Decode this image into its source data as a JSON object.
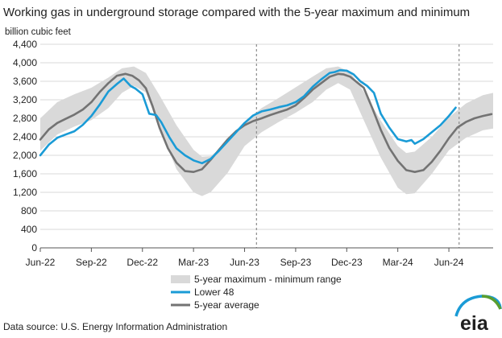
{
  "chart_data": {
    "type": "line",
    "title": "Working gas in underground  storage compared with the 5-year maximum and minimum",
    "ylabel": "billion cubic feet",
    "xlabel": "",
    "ylim": [
      0,
      4400
    ],
    "y_ticks": [
      0,
      400,
      800,
      1200,
      1600,
      2000,
      2400,
      2800,
      3200,
      3600,
      4000,
      4400
    ],
    "y_tick_labels": [
      "0",
      "400",
      "800",
      "1,200",
      "1,600",
      "2,000",
      "2,400",
      "2,800",
      "3,200",
      "3,600",
      "4,000",
      "4,400"
    ],
    "x_range": [
      "2022-06-01",
      "2024-08-18"
    ],
    "x_ticks": [
      {
        "label": "Jun-22",
        "month": 0
      },
      {
        "label": "Sep-22",
        "month": 3
      },
      {
        "label": "Dec-22",
        "month": 6
      },
      {
        "label": "Mar-23",
        "month": 9
      },
      {
        "label": "Jun-23",
        "month": 12
      },
      {
        "label": "Sep-23",
        "month": 15
      },
      {
        "label": "Dec-23",
        "month": 18
      },
      {
        "label": "Mar-24",
        "month": 21
      },
      {
        "label": "Jun-24",
        "month": 24
      }
    ],
    "grid": true,
    "vertical_markers_month": [
      12.7,
      24.6
    ],
    "legend_position": "bottom-center",
    "series": [
      {
        "name": "5-year maximum - minimum range",
        "kind": "band",
        "color": "#d9d9d9",
        "x_month": [
          0,
          1,
          2,
          3,
          4,
          4.8,
          5.5,
          6.2,
          7,
          8,
          9,
          9.5,
          10,
          11,
          12,
          13,
          14,
          15,
          16,
          16.8,
          17.5,
          18.2,
          19,
          20,
          21,
          21.5,
          22,
          23,
          24,
          25,
          26,
          26.6
        ],
        "upper": [
          2800,
          3150,
          3320,
          3460,
          3680,
          3880,
          3920,
          3780,
          3300,
          2650,
          2120,
          1970,
          1980,
          2280,
          2720,
          3020,
          3240,
          3470,
          3700,
          3880,
          3920,
          3800,
          3380,
          2750,
          2200,
          2050,
          2080,
          2400,
          2820,
          3120,
          3300,
          3350
        ],
        "lower": [
          2100,
          2450,
          2620,
          2760,
          3020,
          3350,
          3500,
          3360,
          2600,
          1700,
          1200,
          1120,
          1200,
          1620,
          2200,
          2500,
          2720,
          2920,
          3150,
          3420,
          3560,
          3420,
          2760,
          1950,
          1300,
          1160,
          1180,
          1600,
          2110,
          2380,
          2540,
          2580
        ]
      },
      {
        "name": "Lower 48",
        "kind": "line",
        "color": "#1a9bd6",
        "x_month": [
          0,
          0.5,
          1,
          1.5,
          2,
          2.5,
          3,
          3.5,
          4,
          4.5,
          4.9,
          5.3,
          5.6,
          6.0,
          6.4,
          6.8,
          7.1,
          7.6,
          8.0,
          8.5,
          9.0,
          9.5,
          10.0,
          10.5,
          11.0,
          11.5,
          12.0,
          12.5,
          13.0,
          13.5,
          14.0,
          14.5,
          15.0,
          15.5,
          16.0,
          16.5,
          17.0,
          17.3,
          17.6,
          18.0,
          18.4,
          18.8,
          19.2,
          19.6,
          20.0,
          20.5,
          21.0,
          21.5,
          21.8,
          22.0,
          22.5,
          23.0,
          23.5,
          24.0,
          24.4
        ],
        "values": [
          2000,
          2230,
          2380,
          2450,
          2520,
          2660,
          2850,
          3100,
          3380,
          3540,
          3660,
          3500,
          3440,
          3320,
          2900,
          2870,
          2720,
          2380,
          2150,
          2000,
          1890,
          1830,
          1920,
          2100,
          2300,
          2500,
          2700,
          2860,
          2950,
          2990,
          3040,
          3080,
          3150,
          3280,
          3480,
          3640,
          3780,
          3800,
          3840,
          3830,
          3750,
          3600,
          3500,
          3350,
          2900,
          2600,
          2350,
          2300,
          2330,
          2250,
          2350,
          2500,
          2650,
          2850,
          3030
        ]
      },
      {
        "name": "5-year average",
        "kind": "line",
        "color": "#737373",
        "x_month": [
          0,
          0.5,
          1,
          1.5,
          2,
          2.5,
          3,
          3.5,
          4,
          4.5,
          5.0,
          5.4,
          5.8,
          6.2,
          6.6,
          7.0,
          7.5,
          8.0,
          8.5,
          9.0,
          9.5,
          10.0,
          10.5,
          11.0,
          11.5,
          12.0,
          12.5,
          13.0,
          13.5,
          14.0,
          14.5,
          15.0,
          15.5,
          16.0,
          16.5,
          17.0,
          17.5,
          17.8,
          18.2,
          18.6,
          19.0,
          19.5,
          20.0,
          20.5,
          21.0,
          21.5,
          22.0,
          22.5,
          23.0,
          23.5,
          24.0,
          24.5,
          25.0,
          25.5,
          26.0,
          26.5
        ],
        "values": [
          2340,
          2560,
          2700,
          2790,
          2880,
          2990,
          3150,
          3370,
          3560,
          3720,
          3760,
          3720,
          3620,
          3450,
          3060,
          2600,
          2150,
          1840,
          1660,
          1640,
          1700,
          1900,
          2120,
          2340,
          2520,
          2650,
          2740,
          2800,
          2870,
          2930,
          2990,
          3080,
          3240,
          3420,
          3560,
          3700,
          3760,
          3750,
          3700,
          3580,
          3460,
          3020,
          2550,
          2160,
          1880,
          1680,
          1640,
          1680,
          1860,
          2100,
          2370,
          2600,
          2720,
          2800,
          2850,
          2890
        ]
      }
    ],
    "legend": [
      {
        "label": "5-year maximum - minimum range",
        "style": "band",
        "color": "#d9d9d9"
      },
      {
        "label": "Lower 48",
        "style": "line",
        "color": "#1a9bd6"
      },
      {
        "label": "5-year average",
        "style": "line",
        "color": "#737373"
      }
    ]
  },
  "source": "Data source:  U.S. Energy Information Administration",
  "logo_text": "eia",
  "logo_colors": {
    "text": "#1f1f1f",
    "swoosh_blue": "#1a9bd6",
    "swoosh_green": "#5a9e2f"
  }
}
